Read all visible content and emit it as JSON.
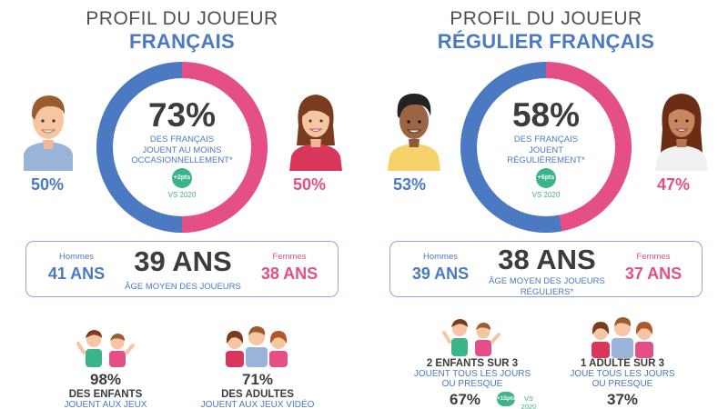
{
  "left": {
    "title_line1": "PROFIL DU JOUEUR",
    "title_line2": "FRANÇAIS",
    "center_percent": "73%",
    "center_caption": [
      "DES FRANÇAIS",
      "JOUENT AU MOINS",
      "OCCASIONNELLEMENT*"
    ],
    "badge": "+2pts",
    "vs_text": "VS 2020",
    "men_percent": "50%",
    "women_percent": "50%",
    "ring_blue_share": 0.5,
    "age_box": {
      "men_label": "Hommes",
      "men_age": "41 ANS",
      "main_age": "39 ANS",
      "main_caption": [
        "ÂGE MOYEN DES JOUEURS"
      ],
      "women_label": "Femmes",
      "women_age": "38 ANS"
    },
    "stats": [
      {
        "value": "98%",
        "line1": "DES ENFANTS",
        "line2": "JOUENT AUX JEUX VIDÉO"
      },
      {
        "value": "71%",
        "line1": "DES ADULTES",
        "line2": "JOUENT AUX JEUX VIDÉO"
      }
    ]
  },
  "right": {
    "title_line1": "PROFIL DU JOUEUR",
    "title_line2": "RÉGULIER FRANÇAIS",
    "center_percent": "58%",
    "center_caption": [
      "DES FRANÇAIS",
      "JOUENT",
      "RÉGULIÈREMENT*"
    ],
    "badge": "+6pts",
    "vs_text": "VS 2020",
    "men_percent": "53%",
    "women_percent": "47%",
    "ring_blue_share": 0.53,
    "age_box": {
      "men_label": "Hommes",
      "men_age": "39 ANS",
      "main_age": "38 ANS",
      "main_caption": [
        "ÂGE MOYEN DES JOUEURS",
        "RÉGULIERS*"
      ],
      "women_label": "Femmes",
      "women_age": "37 ANS"
    },
    "stats": [
      {
        "line1": "2 ENFANTS SUR 3",
        "line2": "JOUENT TOUS LES JOURS",
        "line3": "OU PRESQUE",
        "value": "67%",
        "badge": "+15pts",
        "vs_text": "VS 2020"
      },
      {
        "line1": "1 ADULTE SUR 3",
        "line2": "JOUE TOUS LES JOURS",
        "line3": "OU PRESQUE",
        "value": "37%"
      }
    ]
  },
  "colors": {
    "blue": "#4b79c2",
    "pink": "#e34f86",
    "green": "#3bb489",
    "dark": "#3c3c3c"
  }
}
